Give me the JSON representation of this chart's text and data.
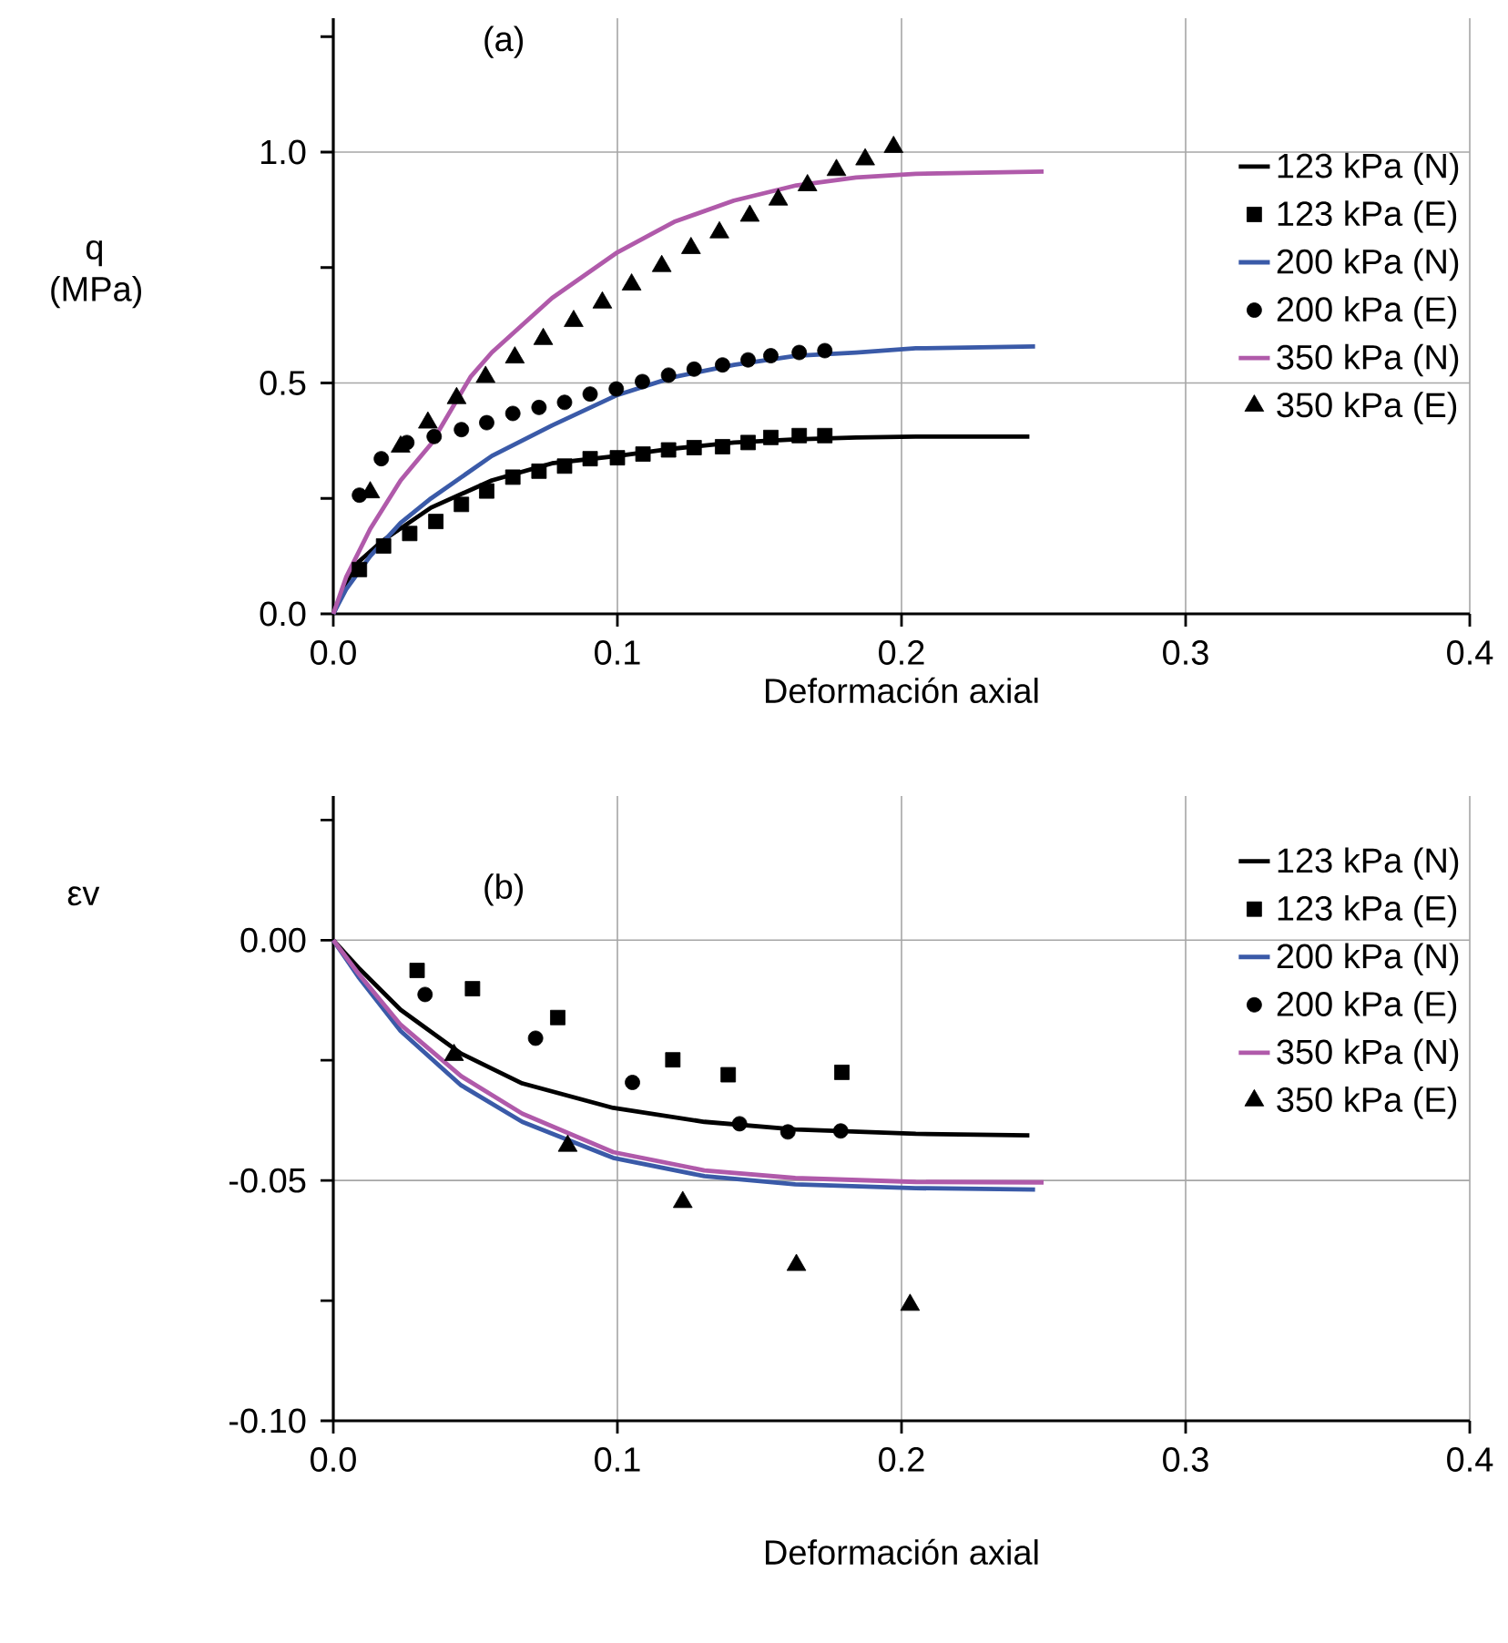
{
  "chart_data": [
    {
      "type": "line",
      "xlabel": "Deformación axial",
      "ylabel": "q (MPa)",
      "annotations": [
        "(a)"
      ],
      "xlim": [
        0,
        0.4
      ],
      "ylim": [
        0,
        1.29
      ],
      "xticks": [
        {
          "value": 0,
          "label": "0.0"
        },
        0.1,
        0.2,
        0.3,
        0.4
      ],
      "yticks": [
        {
          "value": 0,
          "label": "0.0"
        },
        {
          "value": 0.25,
          "label": null
        },
        {
          "value": 0.5,
          "label": "0.5"
        },
        {
          "value": 0.75,
          "label": null
        },
        {
          "value": 1,
          "label": "1.0"
        },
        {
          "value": 1.25,
          "label": null
        }
      ],
      "grid": true,
      "legend": "right",
      "series": [
        {
          "name": "123 kPa (N)",
          "marker": "none",
          "color": "#000000",
          "x": [
            0,
            0.0045,
            0.0088,
            0.0173,
            0.0344,
            0.0558,
            0.077,
            0.1,
            0.12,
            0.141,
            0.163,
            0.184,
            0.205,
            0.245
          ],
          "values": [
            0,
            0.066,
            0.112,
            0.158,
            0.23,
            0.289,
            0.326,
            0.342,
            0.358,
            0.371,
            0.378,
            0.382,
            0.384,
            0.384
          ]
        },
        {
          "name": "123 kPa (E)",
          "type": "scatter",
          "marker": "square",
          "color": "#000000",
          "x": [
            0.0092,
            0.0177,
            0.0269,
            0.0361,
            0.0451,
            0.054,
            0.0632,
            0.0724,
            0.0814,
            0.0904,
            0.1,
            0.109,
            0.118,
            0.127,
            0.137,
            0.146,
            0.154,
            0.164,
            0.173
          ],
          "values": [
            0.096,
            0.147,
            0.174,
            0.2,
            0.237,
            0.266,
            0.296,
            0.309,
            0.32,
            0.336,
            0.338,
            0.346,
            0.355,
            0.36,
            0.362,
            0.371,
            0.382,
            0.386,
            0.386
          ]
        },
        {
          "name": "200 kPa (N)",
          "marker": "none",
          "color": "#3a5aa8",
          "x": [
            0,
            0.0045,
            0.013,
            0.0237,
            0.0344,
            0.0558,
            0.077,
            0.1,
            0.12,
            0.141,
            0.163,
            0.184,
            0.205,
            0.247
          ],
          "values": [
            0,
            0.053,
            0.125,
            0.197,
            0.25,
            0.342,
            0.408,
            0.474,
            0.513,
            0.539,
            0.559,
            0.566,
            0.575,
            0.579
          ]
        },
        {
          "name": "200 kPa (E)",
          "type": "scatter",
          "marker": "circle",
          "color": "#000000",
          "x": [
            0.0092,
            0.0169,
            0.0259,
            0.0355,
            0.0451,
            0.054,
            0.0632,
            0.0724,
            0.0814,
            0.0904,
            0.0996,
            0.1088,
            0.118,
            0.127,
            0.137,
            0.146,
            0.154,
            0.164,
            0.173
          ],
          "values": [
            0.257,
            0.336,
            0.371,
            0.384,
            0.399,
            0.414,
            0.434,
            0.447,
            0.458,
            0.476,
            0.487,
            0.503,
            0.517,
            0.53,
            0.539,
            0.55,
            0.559,
            0.566,
            0.57
          ]
        },
        {
          "name": "350 kPa (N)",
          "marker": "none",
          "color": "#b05aaa",
          "x": [
            0,
            0.0045,
            0.013,
            0.0237,
            0.0344,
            0.0483,
            0.0558,
            0.077,
            0.1,
            0.12,
            0.141,
            0.163,
            0.184,
            0.205,
            0.25
          ],
          "values": [
            0,
            0.079,
            0.184,
            0.289,
            0.368,
            0.513,
            0.566,
            0.684,
            0.783,
            0.849,
            0.895,
            0.928,
            0.945,
            0.953,
            0.958
          ]
        },
        {
          "name": "350 kPa (E)",
          "type": "scatter",
          "marker": "triangle",
          "color": "#000000",
          "x": [
            0.013,
            0.0237,
            0.0333,
            0.0434,
            0.0536,
            0.0639,
            0.0739,
            0.0846,
            0.0947,
            0.105,
            0.1156,
            0.1259,
            0.1359,
            0.1466,
            0.1566,
            0.1669,
            0.1771,
            0.1872,
            0.1972
          ],
          "values": [
            0.263,
            0.362,
            0.414,
            0.467,
            0.513,
            0.555,
            0.595,
            0.634,
            0.674,
            0.713,
            0.753,
            0.792,
            0.826,
            0.862,
            0.897,
            0.928,
            0.961,
            0.984,
            1.011
          ]
        }
      ]
    },
    {
      "type": "line",
      "xlabel": "Deformación axial",
      "ylabel": "εv",
      "annotations": [
        "(b)"
      ],
      "xlim": [
        0,
        0.4
      ],
      "ylim": [
        -0.1,
        0.03
      ],
      "xticks": [
        {
          "value": 0,
          "label": "0.0"
        },
        0.1,
        0.2,
        0.3,
        0.4
      ],
      "yticks": [
        {
          "value": -0.1,
          "label": "-0.10"
        },
        {
          "value": -0.075,
          "label": null
        },
        {
          "value": -0.05,
          "label": "-0.05"
        },
        {
          "value": -0.025,
          "label": null
        },
        {
          "value": 0,
          "label": "0.00"
        },
        {
          "value": 0.025,
          "label": null
        }
      ],
      "grid": true,
      "legend": "top right",
      "series": [
        {
          "name": "123 kPa (N)",
          "marker": "none",
          "color": "#000000",
          "x": [
            0,
            0.0088,
            0.0237,
            0.045,
            0.0665,
            0.0985,
            0.1306,
            0.1626,
            0.205,
            0.245
          ],
          "values": [
            0,
            -0.0057,
            -0.0145,
            -0.0236,
            -0.0298,
            -0.0349,
            -0.0378,
            -0.0394,
            -0.0403,
            -0.0406
          ]
        },
        {
          "name": "123 kPa (E)",
          "type": "scatter",
          "marker": "square",
          "color": "#000000",
          "x": [
            0.0295,
            0.049,
            0.079,
            0.1195,
            0.139,
            0.179
          ],
          "values": [
            -0.0063,
            -0.0101,
            -0.0161,
            -0.0249,
            -0.028,
            -0.0275
          ]
        },
        {
          "name": "200 kPa (N)",
          "marker": "none",
          "color": "#3a5aa8",
          "x": [
            0,
            0.0088,
            0.0237,
            0.045,
            0.0665,
            0.0985,
            0.1306,
            0.1626,
            0.205,
            0.247
          ],
          "values": [
            0,
            -0.0076,
            -0.0189,
            -0.0302,
            -0.0378,
            -0.0453,
            -0.0491,
            -0.0508,
            -0.0516,
            -0.0519
          ]
        },
        {
          "name": "200 kPa (E)",
          "type": "scatter",
          "marker": "circle",
          "color": "#000000",
          "x": [
            0.0323,
            0.0712,
            0.1053,
            0.143,
            0.16,
            0.1786
          ],
          "values": [
            -0.0113,
            -0.0204,
            -0.0296,
            -0.0382,
            -0.0399,
            -0.0397
          ]
        },
        {
          "name": "350 kPa (N)",
          "marker": "none",
          "color": "#b05aaa",
          "x": [
            0,
            0.0088,
            0.0237,
            0.045,
            0.0665,
            0.0985,
            0.1306,
            0.1626,
            0.205,
            0.25
          ],
          "values": [
            0,
            -0.0069,
            -0.0176,
            -0.0283,
            -0.0361,
            -0.0441,
            -0.0479,
            -0.0495,
            -0.0503,
            -0.0504
          ]
        },
        {
          "name": "350 kPa (E)",
          "type": "scatter",
          "marker": "triangle",
          "color": "#000000",
          "x": [
            0.0425,
            0.0825,
            0.123,
            0.163,
            0.203
          ],
          "values": [
            -0.0239,
            -0.0428,
            -0.0545,
            -0.0676,
            -0.0759
          ]
        }
      ]
    }
  ]
}
